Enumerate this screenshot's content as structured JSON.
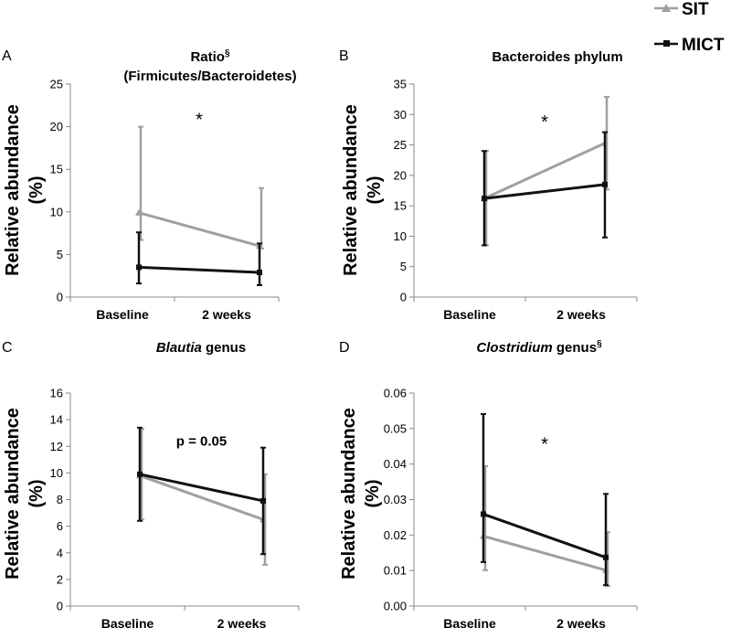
{
  "legend": [
    {
      "name": "SIT",
      "color": "#a0a0a0",
      "marker": "triangle"
    },
    {
      "name": "MICT",
      "color": "#111111",
      "marker": "square"
    }
  ],
  "chart_data": [
    {
      "panel": "A",
      "type": "line",
      "title": "Ratio",
      "title_superscript": "§",
      "title_line2": "(Firmicutes/Bacteroidetes)",
      "ylabel_line1": "Relative abundance",
      "ylabel_line2": "(%)",
      "categories": [
        "Baseline",
        "2 weeks"
      ],
      "ylim": [
        0,
        25
      ],
      "yticks": [
        "0",
        "5",
        "10",
        "15",
        "20",
        "25"
      ],
      "series": [
        {
          "name": "SIT",
          "values": [
            9.9,
            6.0
          ],
          "err_low": [
            6.7,
            5.7
          ],
          "err_high": [
            20.0,
            12.8
          ]
        },
        {
          "name": "MICT",
          "values": [
            3.5,
            2.9
          ],
          "err_low": [
            1.6,
            1.4
          ],
          "err_high": [
            7.6,
            6.3
          ]
        }
      ],
      "annotation": {
        "text": "*",
        "at": [
          "Baseline",
          "2 weeks"
        ],
        "y": 21
      }
    },
    {
      "panel": "B",
      "type": "line",
      "title": "Bacteroides phylum",
      "ylabel_line1": "Relative abundance",
      "ylabel_line2": "(%)",
      "categories": [
        "Baseline",
        "2 weeks"
      ],
      "ylim": [
        0,
        35
      ],
      "yticks": [
        "0",
        "5",
        "10",
        "15",
        "20",
        "25",
        "30",
        "35"
      ],
      "series": [
        {
          "name": "SIT",
          "values": [
            16.2,
            25.3
          ],
          "err_low": [
            8.5,
            17.7
          ],
          "err_high": [
            24.0,
            32.9
          ]
        },
        {
          "name": "MICT",
          "values": [
            16.2,
            18.5
          ],
          "err_low": [
            8.5,
            9.8
          ],
          "err_high": [
            24.0,
            27.1
          ]
        }
      ],
      "annotation": {
        "text": "*",
        "at": [
          "Baseline",
          "2 weeks"
        ],
        "y": 29
      }
    },
    {
      "panel": "C",
      "type": "line",
      "title": "Blautia",
      "title_italic": true,
      "title_suffix": " genus",
      "ylabel_line1": "Relative abundance",
      "ylabel_line2": "(%)",
      "categories": [
        "Baseline",
        "2 weeks"
      ],
      "ylim": [
        0,
        16
      ],
      "yticks": [
        "0",
        "2",
        "4",
        "6",
        "8",
        "10",
        "12",
        "14",
        "16"
      ],
      "series": [
        {
          "name": "SIT",
          "values": [
            9.8,
            6.5
          ],
          "err_low": [
            6.5,
            3.1
          ],
          "err_high": [
            13.3,
            9.9
          ]
        },
        {
          "name": "MICT",
          "values": [
            9.9,
            7.9
          ],
          "err_low": [
            6.4,
            3.9
          ],
          "err_high": [
            13.4,
            11.9
          ]
        }
      ],
      "annotation": {
        "text": "p = 0.05",
        "at": [
          "Baseline",
          "2 weeks"
        ],
        "y": 12.4
      }
    },
    {
      "panel": "D",
      "type": "line",
      "title": "Clostridium",
      "title_italic": true,
      "title_suffix": " genus",
      "title_superscript": "§",
      "ylabel_line1": "Relative abundance",
      "ylabel_line2": "(%)",
      "categories": [
        "Baseline",
        "2 weeks"
      ],
      "ylim": [
        0,
        0.06
      ],
      "yticks": [
        "0.00",
        "0.01",
        "0.02",
        "0.03",
        "0.04",
        "0.05",
        "0.06"
      ],
      "series": [
        {
          "name": "SIT",
          "values": [
            0.0197,
            0.0101
          ],
          "err_low": [
            0.0101,
            0.0056
          ],
          "err_high": [
            0.0394,
            0.0208
          ]
        },
        {
          "name": "MICT",
          "values": [
            0.0259,
            0.0137
          ],
          "err_low": [
            0.0124,
            0.0059
          ],
          "err_high": [
            0.0541,
            0.0316
          ]
        }
      ],
      "annotation": {
        "text": "*",
        "at": [
          "Baseline",
          "2 weeks"
        ],
        "y": 0.046
      }
    }
  ]
}
